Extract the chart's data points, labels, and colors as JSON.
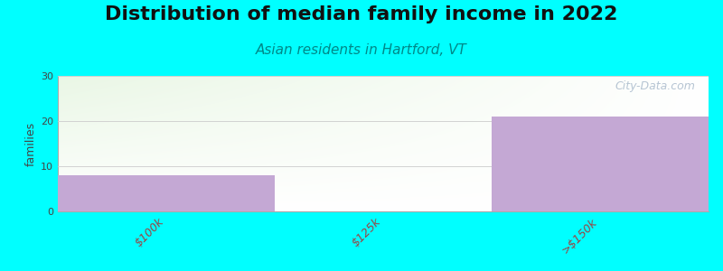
{
  "title": "Distribution of median family income in 2022",
  "subtitle": "Asian residents in Hartford, VT",
  "watermark": "City-Data.com",
  "categories": [
    "$100k",
    "$125k",
    ">$150k"
  ],
  "values": [
    8,
    0,
    21
  ],
  "bar_color": "#c4a8d4",
  "background_color": "#00ffff",
  "ylabel": "families",
  "ylim": [
    0,
    30
  ],
  "yticks": [
    0,
    10,
    20,
    30
  ],
  "title_fontsize": 16,
  "subtitle_fontsize": 11,
  "subtitle_color": "#008888",
  "tick_label_color": "#994444",
  "watermark_color": "#aabbcc",
  "ylabel_color": "#444444"
}
